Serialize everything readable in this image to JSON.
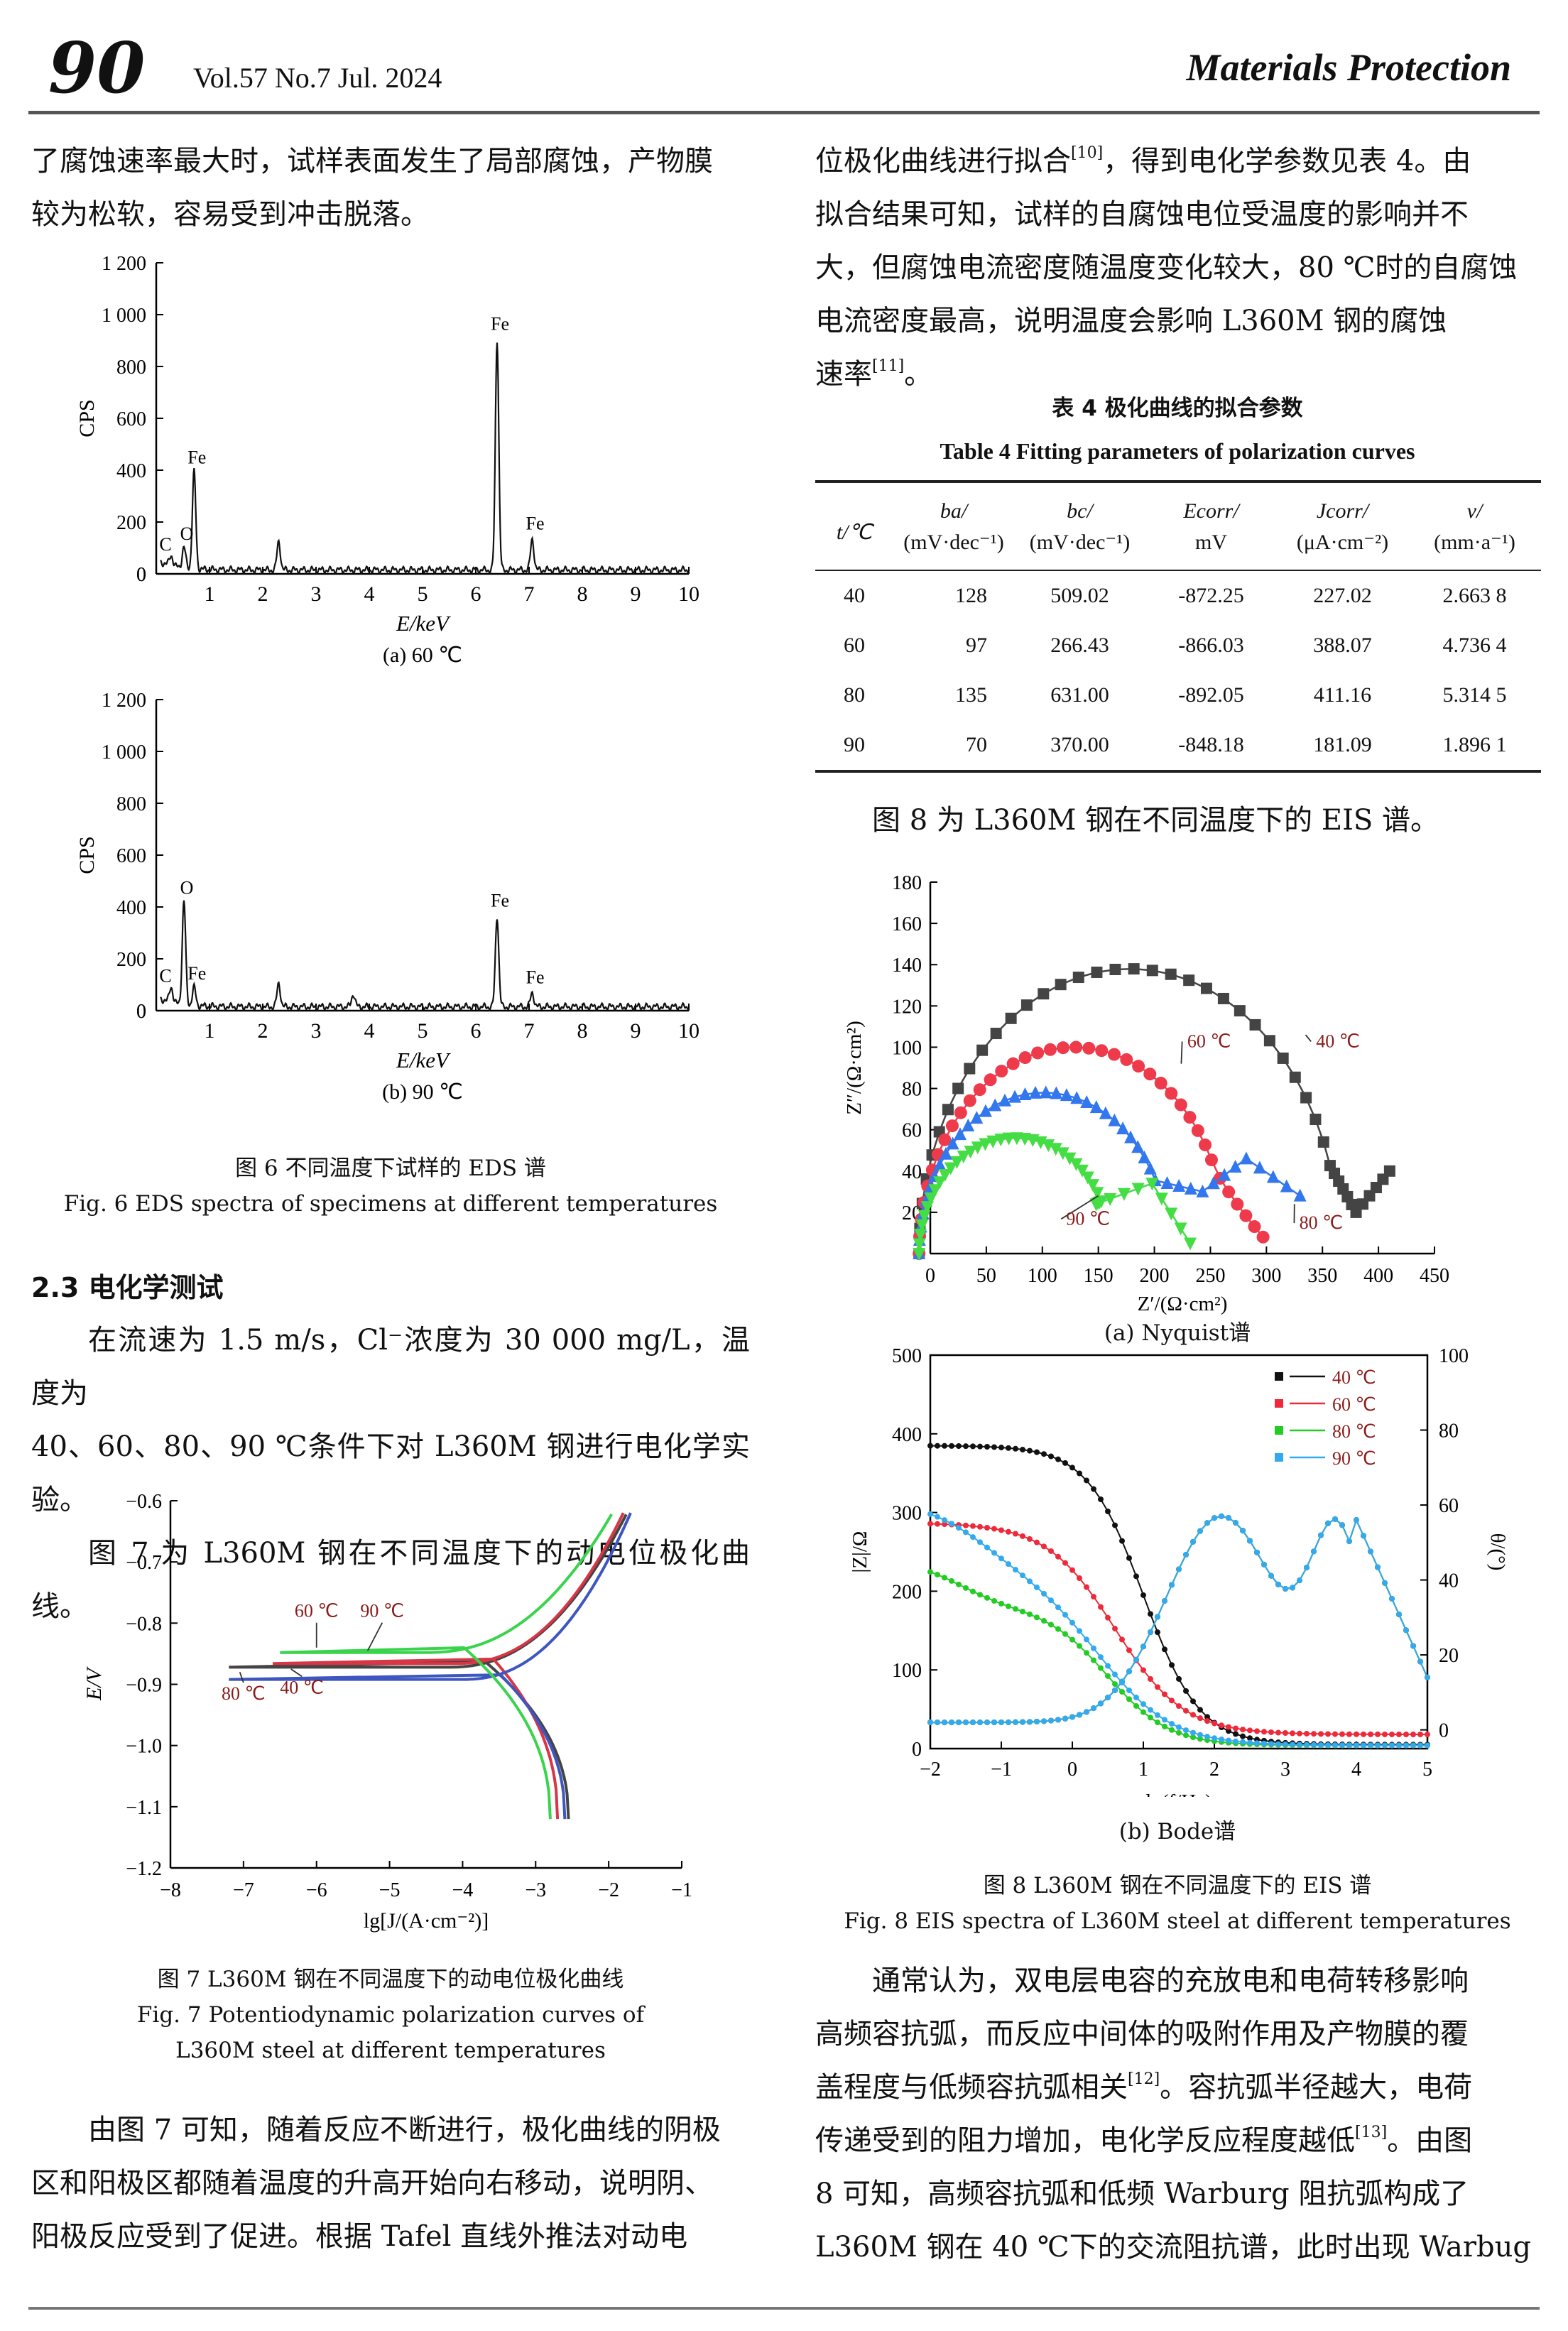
{
  "header": {
    "page_number": "90",
    "issue": "Vol.57  No.7  Jul. 2024",
    "journal": "Materials Protection"
  },
  "left": {
    "para_intro": [
      "了腐蚀速率最大时，试样表面发生了局部腐蚀，产物膜",
      "较为松软，容易受到冲击脱落。"
    ],
    "fig6_caption_cn": "图 6   不同温度下试样的 EDS 谱",
    "fig6_caption_en": "Fig. 6    EDS spectra of specimens at different temperatures",
    "section_heading": "2.3   电化学测试",
    "para_2": [
      "在流速为 1.5 m/s，Cl⁻浓度为 30 000 mg/L，温度为",
      "40、60、80、90 ℃条件下对 L360M 钢进行电化学实验。",
      "图 7 为 L360M 钢在不同温度下的动电位极化曲线。"
    ],
    "fig7_caption_cn": "图 7   L360M 钢在不同温度下的动电位极化曲线",
    "fig7_caption_en_1": "Fig. 7    Potentiodynamic polarization curves of",
    "fig7_caption_en_2": "L360M steel at different temperatures",
    "para_3": [
      "由图 7 可知，随着反应不断进行，极化曲线的阴极",
      "区和阳极区都随着温度的升高开始向右移动，说明阴、",
      "阳极反应受到了促进。根据 Tafel 直线外推法对动电"
    ]
  },
  "right": {
    "para_1": [
      "位极化曲线进行拟合",
      "，得到电化学参数见表 4。由",
      "拟合结果可知，试样的自腐蚀电位受温度的影响并不",
      "大，但腐蚀电流密度随温度变化较大，80 ℃时的自腐蚀",
      "电流密度最高，说明温度会影响 L360M 钢的腐蚀",
      "速率",
      "。"
    ],
    "ref10": "[10]",
    "ref11": "[11]",
    "table4_title_cn": "表 4   极化曲线的拟合参数",
    "table4_title_en": "Table 4    Fitting parameters of polarization curves",
    "table4": {
      "headers_top": [
        "t/℃",
        "ba/",
        "bc/",
        "Ecorr/",
        "Jcorr/",
        "v/"
      ],
      "headers_unit": [
        "",
        "(mV·dec⁻¹)",
        "(mV·dec⁻¹)",
        "mV",
        "(μA·cm⁻²)",
        "(mm·a⁻¹)"
      ],
      "rows": [
        [
          "40",
          "128",
          "509.02",
          "-872.25",
          "227.02",
          "2.663 8"
        ],
        [
          "60",
          "97",
          "266.43",
          "-866.03",
          "388.07",
          "4.736 4"
        ],
        [
          "80",
          "135",
          "631.00",
          "-892.05",
          "411.16",
          "5.314 5"
        ],
        [
          "90",
          "70",
          "370.00",
          "-848.18",
          "181.09",
          "1.896 1"
        ]
      ]
    },
    "para_fig8": "图 8 为 L360M 钢在不同温度下的 EIS 谱。",
    "fig8a_label": "(a) Nyquist谱",
    "fig8b_label": "(b) Bode谱",
    "fig8_caption_cn": "图 8   L360M 钢在不同温度下的 EIS 谱",
    "fig8_caption_en": "Fig. 8    EIS spectra of L360M steel at different temperatures",
    "para_2": [
      "通常认为，双电层电容的充放电和电荷转移影响",
      "高频容抗弧，而反应中间体的吸附作用及产物膜的覆",
      "盖程度与低频容抗弧相关",
      "。容抗弧半径越大，电荷",
      "传递受到的阻力增加，电化学反应程度越低",
      "。由图",
      "8 可知，高频容抗弧和低频 Warburg 阻抗弧构成了",
      "L360M 钢在 40 ℃下的交流阻抗谱，此时出现 Warbug"
    ],
    "ref12": "[12]",
    "ref13": "[13]"
  },
  "chart_data": [
    {
      "id": "fig6a",
      "type": "line",
      "subtitle": "(a) 60 ℃",
      "xlabel": "E/keV",
      "ylabel": "CPS",
      "xlim": [
        0,
        10
      ],
      "ylim": [
        0,
        1200
      ],
      "xticks": [
        1,
        2,
        3,
        4,
        5,
        6,
        7,
        8,
        9,
        10
      ],
      "yticks": [
        0,
        200,
        400,
        600,
        800,
        1000,
        1200
      ],
      "ytick_labels": [
        "0",
        "200",
        "400",
        "600",
        "800",
        "1 000",
        "1 200"
      ],
      "peaks": [
        {
          "label": "C",
          "x": 0.28,
          "y": 40
        },
        {
          "label": "O",
          "x": 0.52,
          "y": 80
        },
        {
          "label": "Fe",
          "x": 0.71,
          "y": 375
        },
        {
          "label": "",
          "x": 2.3,
          "y": 110
        },
        {
          "label": "Fe",
          "x": 6.4,
          "y": 890
        },
        {
          "label": "Fe",
          "x": 7.06,
          "y": 120
        }
      ]
    },
    {
      "id": "fig6b",
      "type": "line",
      "subtitle": "(b) 90 ℃",
      "xlabel": "E/keV",
      "ylabel": "CPS",
      "xlim": [
        0,
        10
      ],
      "ylim": [
        0,
        1200
      ],
      "xticks": [
        1,
        2,
        3,
        4,
        5,
        6,
        7,
        8,
        9,
        10
      ],
      "yticks": [
        0,
        200,
        400,
        600,
        800,
        1000,
        1200
      ],
      "ytick_labels": [
        "0",
        "200",
        "400",
        "600",
        "800",
        "1 000",
        "1 200"
      ],
      "peaks": [
        {
          "label": "C",
          "x": 0.28,
          "y": 60
        },
        {
          "label": "O",
          "x": 0.52,
          "y": 400
        },
        {
          "label": "Fe",
          "x": 0.71,
          "y": 70
        },
        {
          "label": "",
          "x": 2.3,
          "y": 90
        },
        {
          "label": "",
          "x": 3.7,
          "y": 50
        },
        {
          "label": "Fe",
          "x": 6.4,
          "y": 350
        },
        {
          "label": "Fe",
          "x": 7.06,
          "y": 55
        }
      ]
    },
    {
      "id": "fig7",
      "type": "line",
      "xlabel": "lg[J/(A·cm⁻²)]",
      "ylabel": "E/V",
      "xlim": [
        -8,
        -1
      ],
      "ylim": [
        -1.2,
        -0.6
      ],
      "xticks": [
        -8,
        -7,
        -6,
        -5,
        -4,
        -3,
        -2,
        -1
      ],
      "yticks": [
        -1.2,
        -1.1,
        -1.0,
        -0.9,
        -0.8,
        -0.7,
        -0.6
      ],
      "series": [
        {
          "name": "40 ℃",
          "color": "#444444",
          "Ecorr": -0.872,
          "x0": -7.2,
          "xc": -3.7,
          "xend_a": -1.75,
          "xend_c": -2.55
        },
        {
          "name": "60 ℃",
          "color": "#d83545",
          "Ecorr": -0.866,
          "x0": -6.6,
          "xc": -3.6,
          "xend_a": -1.8,
          "xend_c": -2.7
        },
        {
          "name": "80 ℃",
          "color": "#3d56c0",
          "Ecorr": -0.892,
          "x0": -7.2,
          "xc": -3.5,
          "xend_a": -1.7,
          "xend_c": -2.6
        },
        {
          "name": "90 ℃",
          "color": "#39d44c",
          "Ecorr": -0.848,
          "x0": -6.5,
          "xc": -4.0,
          "xend_a": -1.95,
          "xend_c": -2.8
        }
      ]
    },
    {
      "id": "fig8a",
      "type": "scatter",
      "xlabel": "Z′/(Ω·cm²)",
      "ylabel": "Z″/(Ω·cm²)",
      "xlim": [
        0,
        450
      ],
      "ylim": [
        0,
        180
      ],
      "xticks": [
        0,
        50,
        100,
        150,
        200,
        250,
        300,
        350,
        400,
        450
      ],
      "yticks": [
        20,
        40,
        60,
        80,
        100,
        120,
        140,
        160,
        180
      ],
      "series": [
        {
          "name": "40 ℃",
          "color": "#444444",
          "marker": "square",
          "arc_r": 188,
          "arc_max": 138,
          "warb_end": [
            410,
            40
          ]
        },
        {
          "name": "60 ℃",
          "color": "#ee3a4a",
          "marker": "circle",
          "arc_r": 147,
          "arc_max": 100,
          "tail_end": [
            297,
            8
          ]
        },
        {
          "name": "80 ℃",
          "color": "#3377ee",
          "marker": "triangle",
          "arc_r": 124,
          "arc_max": 78,
          "tail_end": [
            330,
            28
          ]
        },
        {
          "name": "90 ℃",
          "color": "#44dd44",
          "marker": "triangle-down",
          "arc_r": 96,
          "arc_max": 56,
          "tail_end": [
            232,
            5
          ]
        }
      ]
    },
    {
      "id": "fig8b",
      "type": "line",
      "xlabel": "lg(f/Hz)",
      "ylabel": "|Z|/Ω",
      "y2label": "θ/(°)",
      "xlim": [
        -2,
        5
      ],
      "ylim": [
        0,
        500
      ],
      "y2lim": [
        -5,
        100
      ],
      "xticks": [
        -2,
        -1,
        0,
        1,
        2,
        3,
        4,
        5
      ],
      "yticks": [
        0,
        100,
        200,
        300,
        400,
        500
      ],
      "y2ticks": [
        0,
        20,
        40,
        60,
        80,
        100
      ],
      "legend": "top-right",
      "series": [
        {
          "name": "40 ℃",
          "color": "#111111",
          "z_low": 385,
          "mid": 1.0
        },
        {
          "name": "60 ℃",
          "color": "#ee2a3a",
          "z_low": 287,
          "mid": 0.6
        },
        {
          "name": "80 ℃",
          "color": "#22cc22",
          "z_low": 240,
          "mid": 0.4
        },
        {
          "name": "90 ℃",
          "color": "#33aaee",
          "z_low": 315,
          "mid": 0.3
        }
      ]
    }
  ]
}
